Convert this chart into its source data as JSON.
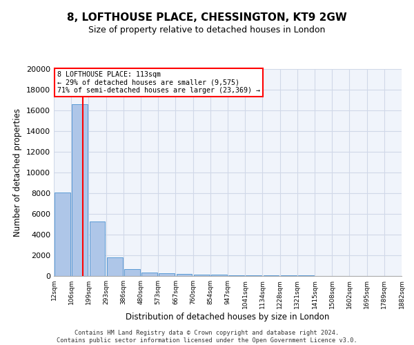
{
  "title": "8, LOFTHOUSE PLACE, CHESSINGTON, KT9 2GW",
  "subtitle": "Size of property relative to detached houses in London",
  "xlabel": "Distribution of detached houses by size in London",
  "ylabel": "Number of detached properties",
  "annotation_line1": "8 LOFTHOUSE PLACE: 113sqm",
  "annotation_line2": "← 29% of detached houses are smaller (9,575)",
  "annotation_line3": "71% of semi-detached houses are larger (23,369) →",
  "footer_line1": "Contains HM Land Registry data © Crown copyright and database right 2024.",
  "footer_line2": "Contains public sector information licensed under the Open Government Licence v3.0.",
  "bin_labels": [
    "12sqm",
    "106sqm",
    "199sqm",
    "293sqm",
    "386sqm",
    "480sqm",
    "573sqm",
    "667sqm",
    "760sqm",
    "854sqm",
    "947sqm",
    "1041sqm",
    "1134sqm",
    "1228sqm",
    "1321sqm",
    "1415sqm",
    "1508sqm",
    "1602sqm",
    "1695sqm",
    "1789sqm",
    "1882sqm"
  ],
  "bar_values": [
    8050,
    16600,
    5300,
    1800,
    700,
    350,
    260,
    210,
    160,
    120,
    90,
    70,
    55,
    45,
    35,
    28,
    20,
    15,
    12,
    9
  ],
  "bar_color": "#aec6e8",
  "bar_edge_color": "#5b9bd5",
  "grid_color": "#d0d8e8",
  "annotation_box_color": "#ff0000",
  "vline_position": 1.15,
  "vline_color": "#ff0000",
  "ylim": [
    0,
    20000
  ],
  "yticks": [
    0,
    2000,
    4000,
    6000,
    8000,
    10000,
    12000,
    14000,
    16000,
    18000,
    20000
  ],
  "background_color": "#f0f4fb"
}
